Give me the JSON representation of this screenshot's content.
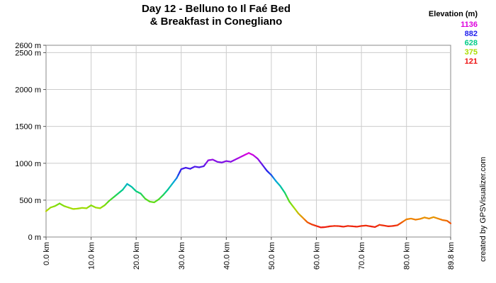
{
  "header": {
    "title_line1": "Day 12 - Belluno to  Il Faé Bed",
    "title_line2": "& Breakfast in Conegliano"
  },
  "legend": {
    "title": "Elevation (m)",
    "items": [
      {
        "label": "1136",
        "color": "#dd00dd"
      },
      {
        "label": "882",
        "color": "#2222ee"
      },
      {
        "label": "628",
        "color": "#00cc88"
      },
      {
        "label": "375",
        "color": "#aadd00"
      },
      {
        "label": "121",
        "color": "#ee1111"
      }
    ]
  },
  "credit": "created by GPSVisualizer.com",
  "chart_data": {
    "type": "line",
    "title": "Day 12 - Belluno to  Il Faé Bed & Breakfast in Conegliano",
    "xlabel": "",
    "ylabel": "",
    "x_unit": "km",
    "y_unit": "m",
    "xlim": [
      0,
      89.8
    ],
    "ylim": [
      0,
      2600
    ],
    "x_tick_labels": [
      "0.0 km",
      "10.0 km",
      "20.0 km",
      "30.0 km",
      "40.0 km",
      "50.0 km",
      "60.0 km",
      "70.0 km",
      "80.0 km",
      "89.8 km"
    ],
    "y_tick_labels": [
      "0 m",
      "500 m",
      "1000 m",
      "1500 m",
      "2000 m",
      "2500 m",
      "2600 m"
    ],
    "grid": true,
    "series": [
      {
        "x": [
          0,
          1,
          2,
          3,
          4,
          5,
          6,
          7,
          8,
          9,
          10,
          11,
          12,
          13,
          14,
          15,
          16,
          17,
          18,
          19,
          20,
          21,
          22,
          23,
          24,
          25,
          26,
          27,
          28,
          29,
          30,
          31,
          32,
          33,
          34,
          35,
          36,
          37,
          38,
          39,
          40,
          41,
          42,
          43,
          44,
          45,
          46,
          47,
          48,
          49,
          50,
          51,
          52,
          53,
          54,
          55,
          56,
          57,
          58,
          59,
          60,
          61,
          62,
          63,
          64,
          65,
          66,
          67,
          68,
          69,
          70,
          71,
          72,
          73,
          74,
          75,
          76,
          77,
          78,
          79,
          80,
          81,
          82,
          83,
          84,
          85,
          86,
          87,
          88,
          89,
          89.8
        ],
        "y": [
          350,
          400,
          420,
          455,
          420,
          400,
          380,
          385,
          395,
          390,
          430,
          400,
          390,
          430,
          490,
          540,
          590,
          640,
          720,
          680,
          620,
          590,
          520,
          480,
          470,
          510,
          570,
          640,
          720,
          800,
          920,
          940,
          925,
          955,
          945,
          960,
          1040,
          1050,
          1020,
          1010,
          1030,
          1020,
          1050,
          1080,
          1110,
          1140,
          1110,
          1060,
          980,
          900,
          840,
          760,
          690,
          600,
          480,
          400,
          320,
          260,
          200,
          170,
          150,
          130,
          135,
          145,
          150,
          148,
          140,
          150,
          145,
          140,
          150,
          155,
          145,
          135,
          165,
          155,
          145,
          150,
          160,
          200,
          240,
          250,
          235,
          245,
          265,
          250,
          270,
          250,
          230,
          220,
          185
        ]
      }
    ]
  }
}
